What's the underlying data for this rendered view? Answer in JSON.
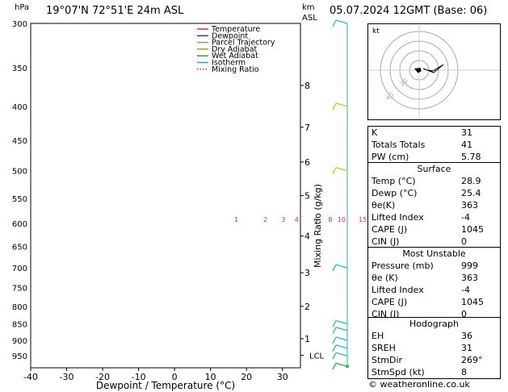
{
  "header": {
    "hpa_unit": "hPa",
    "location": "19°07'N  72°51'E  24m  ASL",
    "km_unit": "km",
    "asl": "ASL",
    "datetime": "05.07.2024  12GMT  (Base: 06)"
  },
  "footer": {
    "copyright": "© weatheronline.co.uk"
  },
  "legend": [
    {
      "label": "Temperature",
      "color": "#e03030",
      "style": "solid"
    },
    {
      "label": "Dewpoint",
      "color": "#2040d0",
      "style": "solid"
    },
    {
      "label": "Parcel Trajectory",
      "color": "#909090",
      "style": "solid"
    },
    {
      "label": "Dry Adiabat",
      "color": "#e08020",
      "style": "solid"
    },
    {
      "label": "Wet Adiabat",
      "color": "#20b020",
      "style": "solid"
    },
    {
      "label": "Isotherm",
      "color": "#20a0e0",
      "style": "solid"
    },
    {
      "label": "Mixing Ratio",
      "color": "#d02090",
      "style": "dotted"
    }
  ],
  "chart_data": {
    "type": "line",
    "title": "",
    "xlabel": "Dewpoint / Temperature (°C)",
    "ylabel_right": "Mixing Ratio (g/kg)",
    "xlim": [
      -40,
      35
    ],
    "ylim": [
      990,
      300
    ],
    "pressure_ticks": [
      300,
      350,
      400,
      450,
      500,
      550,
      600,
      650,
      700,
      750,
      800,
      850,
      900,
      950
    ],
    "x_ticks": [
      -40,
      -30,
      -20,
      -10,
      0,
      10,
      20,
      30
    ],
    "km_ticks": [
      {
        "label": "8",
        "p": 372
      },
      {
        "label": "7",
        "p": 430
      },
      {
        "label": "6",
        "p": 485
      },
      {
        "label": "5",
        "p": 545
      },
      {
        "label": "4",
        "p": 627
      },
      {
        "label": "3",
        "p": 712
      },
      {
        "label": "2",
        "p": 800
      },
      {
        "label": "1",
        "p": 895
      }
    ],
    "lcl": {
      "label": "LCL",
      "p": 948
    },
    "mixing_ratio_labels": [
      "1",
      "2",
      "3",
      "4",
      "6",
      "8",
      "10",
      "15",
      "20",
      "25"
    ],
    "series": [
      {
        "name": "Temperature",
        "points": [
          [
            28.9,
            990
          ],
          [
            26,
            950
          ],
          [
            23.5,
            900
          ],
          [
            21.5,
            850
          ],
          [
            19.5,
            800
          ],
          [
            17.5,
            750
          ],
          [
            14,
            700
          ],
          [
            11.5,
            650
          ],
          [
            8.5,
            600
          ],
          [
            5.5,
            550
          ],
          [
            2.5,
            500
          ],
          [
            -1.5,
            450
          ],
          [
            -5.5,
            400
          ],
          [
            -10,
            350
          ],
          [
            -13,
            330
          ]
        ]
      },
      {
        "name": "Dewpoint",
        "points": [
          [
            25.4,
            990
          ],
          [
            23.5,
            950
          ],
          [
            20.5,
            900
          ],
          [
            19,
            850
          ],
          [
            15.5,
            800
          ],
          [
            7,
            750
          ],
          [
            6,
            700
          ],
          [
            3.5,
            650
          ],
          [
            1,
            600
          ],
          [
            3,
            550
          ],
          [
            0.5,
            500
          ],
          [
            -3.5,
            450
          ],
          [
            -8,
            400
          ],
          [
            -13.5,
            350
          ],
          [
            -16.5,
            330
          ]
        ]
      },
      {
        "name": "Parcel Trajectory",
        "points": [
          [
            28.9,
            990
          ],
          [
            27.5,
            950
          ],
          [
            25.5,
            900
          ],
          [
            23.5,
            850
          ],
          [
            21.5,
            800
          ],
          [
            19,
            750
          ],
          [
            17,
            700
          ],
          [
            14.5,
            650
          ],
          [
            11.5,
            600
          ],
          [
            8.5,
            550
          ],
          [
            5,
            500
          ],
          [
            1,
            450
          ],
          [
            -3,
            400
          ],
          [
            -8.5,
            350
          ],
          [
            -11,
            330
          ]
        ]
      }
    ]
  },
  "hodograph": {
    "unit": "kt",
    "ring_labels": [
      "20",
      "40"
    ],
    "points": [
      [
        5,
        -2
      ],
      [
        18,
        3
      ],
      [
        30,
        -7
      ],
      [
        17,
        1
      ],
      [
        10,
        0
      ]
    ]
  },
  "indices": [
    {
      "label": "K",
      "value": "31"
    },
    {
      "label": "Totals Totals",
      "value": "41"
    },
    {
      "label": "PW (cm)",
      "value": "5.78"
    }
  ],
  "surface": {
    "title": "Surface",
    "rows": [
      {
        "label": "Temp (°C)",
        "value": "28.9"
      },
      {
        "label": "Dewp (°C)",
        "value": "25.4"
      },
      {
        "label": "θe(K)",
        "value": "363"
      },
      {
        "label": "Lifted Index",
        "value": "-4"
      },
      {
        "label": "CAPE (J)",
        "value": "1045"
      },
      {
        "label": "CIN (J)",
        "value": "0"
      }
    ]
  },
  "most_unstable": {
    "title": "Most Unstable",
    "rows": [
      {
        "label": "Pressure (mb)",
        "value": "999"
      },
      {
        "label": "θe (K)",
        "value": "363"
      },
      {
        "label": "Lifted Index",
        "value": "-4"
      },
      {
        "label": "CAPE (J)",
        "value": "1045"
      },
      {
        "label": "CIN (J)",
        "value": "0"
      }
    ]
  },
  "hodograph_table": {
    "title": "Hodograph",
    "rows": [
      {
        "label": "EH",
        "value": "36"
      },
      {
        "label": "SREH",
        "value": "31"
      },
      {
        "label": "StmDir",
        "value": "269°"
      },
      {
        "label": "StmSpd (kt)",
        "value": "8"
      }
    ]
  },
  "wind_profile": {
    "barb_levels": [
      300,
      400,
      500,
      700,
      850,
      870,
      900,
      925,
      950,
      985
    ]
  }
}
